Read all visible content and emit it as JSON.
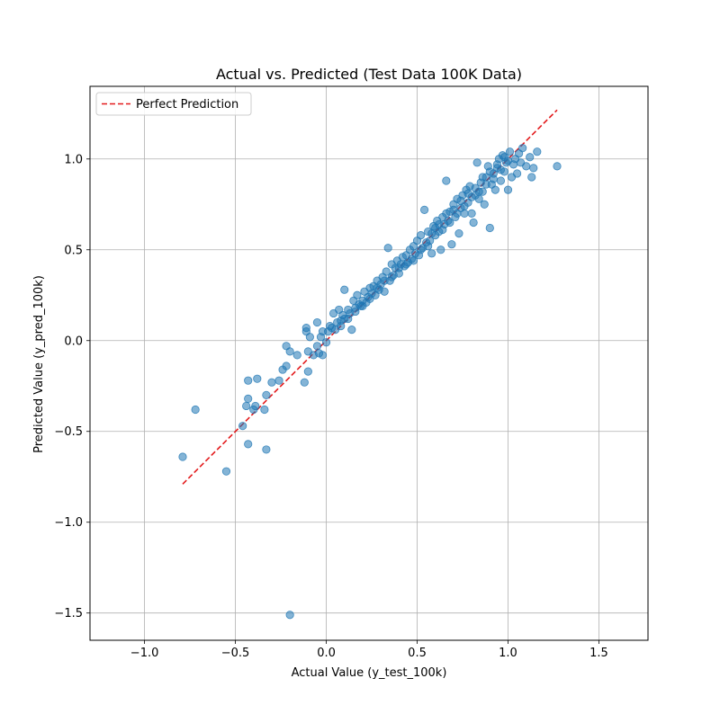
{
  "chart_data": {
    "type": "scatter",
    "title": "Actual vs. Predicted (Test Data 100K Data)",
    "xlabel": "Actual Value (y_test_100k)",
    "ylabel": "Predicted Value (y_pred_100k)",
    "xlim": [
      -1.3,
      1.77
    ],
    "ylim": [
      -1.65,
      1.4
    ],
    "xticks": [
      -1.0,
      -0.5,
      0.0,
      0.5,
      1.0,
      1.5
    ],
    "xtick_labels": [
      "−1.0",
      "−0.5",
      "0.0",
      "0.5",
      "1.0",
      "1.5"
    ],
    "yticks": [
      -1.5,
      -1.0,
      -0.5,
      0.0,
      0.5,
      1.0
    ],
    "ytick_labels": [
      "−1.5",
      "−1.0",
      "−0.5",
      "0.0",
      "0.5",
      "1.0"
    ],
    "grid": true,
    "legend": {
      "position": "top-left",
      "entries": [
        "Perfect Prediction"
      ]
    },
    "reference_line": {
      "name": "Perfect Prediction",
      "style": "dashed",
      "color": "#e31a1c",
      "x": [
        -0.79,
        1.27
      ],
      "y": [
        -0.79,
        1.27
      ]
    },
    "series": [
      {
        "color": "#1f77b4",
        "points": [
          [
            -0.79,
            -0.64
          ],
          [
            -0.72,
            -0.38
          ],
          [
            -0.55,
            -0.72
          ],
          [
            -0.46,
            -0.47
          ],
          [
            -0.44,
            -0.36
          ],
          [
            -0.43,
            -0.57
          ],
          [
            -0.43,
            -0.32
          ],
          [
            -0.43,
            -0.22
          ],
          [
            -0.4,
            -0.38
          ],
          [
            -0.39,
            -0.36
          ],
          [
            -0.38,
            -0.21
          ],
          [
            -0.34,
            -0.38
          ],
          [
            -0.33,
            -0.6
          ],
          [
            -0.33,
            -0.3
          ],
          [
            -0.3,
            -0.23
          ],
          [
            -0.26,
            -0.22
          ],
          [
            -0.24,
            -0.16
          ],
          [
            -0.22,
            -0.14
          ],
          [
            -0.22,
            -0.03
          ],
          [
            -0.2,
            -1.51
          ],
          [
            -0.2,
            -0.06
          ],
          [
            -0.16,
            -0.08
          ],
          [
            -0.12,
            -0.23
          ],
          [
            -0.11,
            0.05
          ],
          [
            -0.11,
            0.07
          ],
          [
            -0.1,
            -0.06
          ],
          [
            -0.1,
            -0.17
          ],
          [
            -0.09,
            0.02
          ],
          [
            -0.07,
            -0.08
          ],
          [
            -0.05,
            0.1
          ],
          [
            -0.05,
            -0.03
          ],
          [
            -0.04,
            -0.07
          ],
          [
            -0.03,
            0.02
          ],
          [
            -0.02,
            0.05
          ],
          [
            -0.02,
            -0.08
          ],
          [
            0.0,
            -0.01
          ],
          [
            0.01,
            0.05
          ],
          [
            0.02,
            0.08
          ],
          [
            0.03,
            0.07
          ],
          [
            0.04,
            0.15
          ],
          [
            0.05,
            0.06
          ],
          [
            0.06,
            0.1
          ],
          [
            0.07,
            0.17
          ],
          [
            0.08,
            0.11
          ],
          [
            0.09,
            0.14
          ],
          [
            0.1,
            0.12
          ],
          [
            0.1,
            0.28
          ],
          [
            0.12,
            0.17
          ],
          [
            0.13,
            0.15
          ],
          [
            0.14,
            0.06
          ],
          [
            0.15,
            0.22
          ],
          [
            0.16,
            0.18
          ],
          [
            0.17,
            0.25
          ],
          [
            0.18,
            0.2
          ],
          [
            0.19,
            0.19
          ],
          [
            0.2,
            0.22
          ],
          [
            0.21,
            0.27
          ],
          [
            0.22,
            0.21
          ],
          [
            0.23,
            0.24
          ],
          [
            0.24,
            0.29
          ],
          [
            0.25,
            0.26
          ],
          [
            0.26,
            0.3
          ],
          [
            0.27,
            0.25
          ],
          [
            0.28,
            0.33
          ],
          [
            0.29,
            0.28
          ],
          [
            0.3,
            0.31
          ],
          [
            0.31,
            0.35
          ],
          [
            0.32,
            0.27
          ],
          [
            0.33,
            0.38
          ],
          [
            0.34,
            0.51
          ],
          [
            0.35,
            0.33
          ],
          [
            0.36,
            0.42
          ],
          [
            0.37,
            0.36
          ],
          [
            0.38,
            0.4
          ],
          [
            0.39,
            0.44
          ],
          [
            0.4,
            0.37
          ],
          [
            0.41,
            0.42
          ],
          [
            0.42,
            0.46
          ],
          [
            0.43,
            0.41
          ],
          [
            0.44,
            0.47
          ],
          [
            0.45,
            0.43
          ],
          [
            0.46,
            0.5
          ],
          [
            0.47,
            0.45
          ],
          [
            0.48,
            0.52
          ],
          [
            0.49,
            0.48
          ],
          [
            0.5,
            0.55
          ],
          [
            0.51,
            0.47
          ],
          [
            0.52,
            0.58
          ],
          [
            0.53,
            0.51
          ],
          [
            0.54,
            0.72
          ],
          [
            0.55,
            0.54
          ],
          [
            0.56,
            0.6
          ],
          [
            0.57,
            0.55
          ],
          [
            0.58,
            0.48
          ],
          [
            0.59,
            0.63
          ],
          [
            0.6,
            0.58
          ],
          [
            0.61,
            0.66
          ],
          [
            0.62,
            0.6
          ],
          [
            0.63,
            0.5
          ],
          [
            0.64,
            0.68
          ],
          [
            0.65,
            0.64
          ],
          [
            0.66,
            0.88
          ],
          [
            0.67,
            0.66
          ],
          [
            0.68,
            0.71
          ],
          [
            0.69,
            0.53
          ],
          [
            0.7,
            0.75
          ],
          [
            0.71,
            0.68
          ],
          [
            0.72,
            0.78
          ],
          [
            0.73,
            0.59
          ],
          [
            0.74,
            0.73
          ],
          [
            0.75,
            0.8
          ],
          [
            0.76,
            0.7
          ],
          [
            0.77,
            0.83
          ],
          [
            0.78,
            0.76
          ],
          [
            0.79,
            0.85
          ],
          [
            0.8,
            0.7
          ],
          [
            0.81,
            0.65
          ],
          [
            0.82,
            0.8
          ],
          [
            0.83,
            0.98
          ],
          [
            0.84,
            0.78
          ],
          [
            0.85,
            0.87
          ],
          [
            0.86,
            0.82
          ],
          [
            0.87,
            0.75
          ],
          [
            0.88,
            0.9
          ],
          [
            0.89,
            0.96
          ],
          [
            0.9,
            0.62
          ],
          [
            0.91,
            0.86
          ],
          [
            0.92,
            0.92
          ],
          [
            0.93,
            0.83
          ],
          [
            0.94,
            0.95
          ],
          [
            0.95,
            1.0
          ],
          [
            0.96,
            0.88
          ],
          [
            0.97,
            1.02
          ],
          [
            0.98,
            0.93
          ],
          [
            0.99,
            0.98
          ],
          [
            1.0,
            0.83
          ],
          [
            1.01,
            1.04
          ],
          [
            1.02,
            0.9
          ],
          [
            1.03,
            0.97
          ],
          [
            1.04,
            1.0
          ],
          [
            1.05,
            0.92
          ],
          [
            1.06,
            1.03
          ],
          [
            1.07,
            0.98
          ],
          [
            1.08,
            1.06
          ],
          [
            1.1,
            0.96
          ],
          [
            1.12,
            1.01
          ],
          [
            1.13,
            0.9
          ],
          [
            1.14,
            0.95
          ],
          [
            1.16,
            1.04
          ],
          [
            1.27,
            0.96
          ],
          [
            0.56,
            0.52
          ],
          [
            0.6,
            0.62
          ],
          [
            0.64,
            0.61
          ],
          [
            0.68,
            0.65
          ],
          [
            0.72,
            0.7
          ],
          [
            0.76,
            0.74
          ],
          [
            0.8,
            0.79
          ],
          [
            0.84,
            0.82
          ],
          [
            0.88,
            0.86
          ],
          [
            0.92,
            0.89
          ],
          [
            0.96,
            0.94
          ],
          [
            1.0,
            0.99
          ],
          [
            0.58,
            0.59
          ],
          [
            0.62,
            0.64
          ],
          [
            0.66,
            0.7
          ],
          [
            0.7,
            0.72
          ],
          [
            0.74,
            0.77
          ],
          [
            0.78,
            0.81
          ],
          [
            0.82,
            0.84
          ],
          [
            0.86,
            0.9
          ],
          [
            0.9,
            0.93
          ],
          [
            0.94,
            0.97
          ],
          [
            0.98,
            1.01
          ],
          [
            0.52,
            0.5
          ],
          [
            0.48,
            0.44
          ],
          [
            0.44,
            0.42
          ],
          [
            0.4,
            0.4
          ],
          [
            0.36,
            0.35
          ],
          [
            0.32,
            0.33
          ],
          [
            0.28,
            0.29
          ],
          [
            0.24,
            0.23
          ],
          [
            0.2,
            0.19
          ],
          [
            0.16,
            0.16
          ],
          [
            0.12,
            0.12
          ],
          [
            0.08,
            0.08
          ]
        ]
      }
    ]
  }
}
